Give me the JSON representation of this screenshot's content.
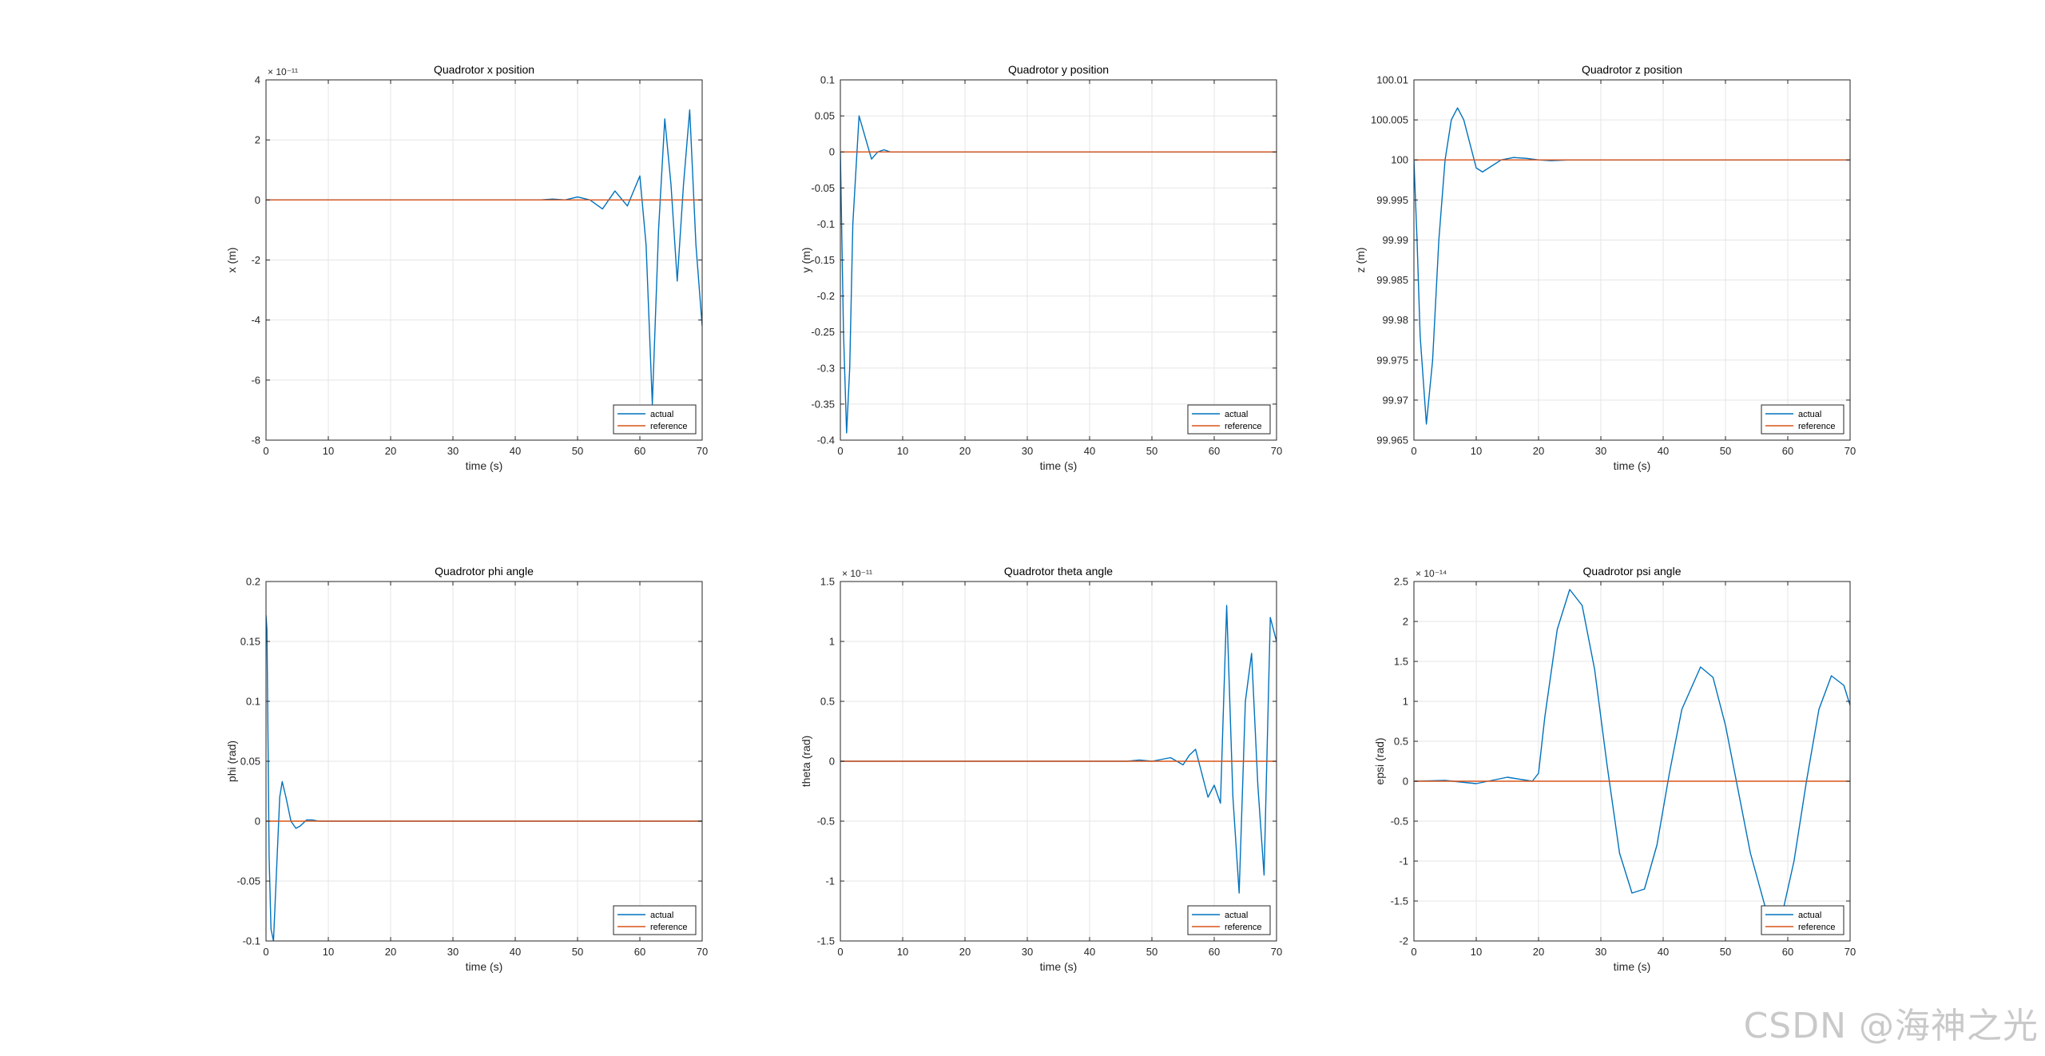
{
  "watermark": "CSDN @海神之光",
  "colors": {
    "actual": "#0072BD",
    "reference": "#D95319",
    "grid": "#e5e5e5",
    "axis": "#262626"
  },
  "chart_data": [
    {
      "type": "line",
      "title": "Quadrotor x position",
      "xlabel": "time (s)",
      "ylabel": "x (m)",
      "xlim": [
        0,
        70
      ],
      "ylim": [
        -8,
        4
      ],
      "xticks": [
        0,
        10,
        20,
        30,
        40,
        50,
        60,
        70
      ],
      "yticks": [
        -8,
        -6,
        -4,
        -2,
        0,
        2,
        4
      ],
      "ytick_labels": [
        "-8",
        "-6",
        "-4",
        "-2",
        "0",
        "2",
        "4"
      ],
      "exponent": "× 10⁻¹¹",
      "grid": true,
      "legend": "bottom-right",
      "series": [
        {
          "name": "actual",
          "x": [
            0,
            44,
            46,
            48,
            50,
            52,
            54,
            56,
            58,
            60,
            61,
            62,
            63,
            64,
            65,
            66,
            67,
            68,
            69,
            70
          ],
          "y": [
            0,
            0,
            0.03,
            0,
            0.1,
            0,
            -0.3,
            0.3,
            -0.2,
            0.8,
            -1.5,
            -6.8,
            -1,
            2.7,
            0.5,
            -2.7,
            0.5,
            3.0,
            -1.5,
            -4.2
          ]
        },
        {
          "name": "reference",
          "x": [
            0,
            70
          ],
          "y": [
            0,
            0
          ]
        }
      ]
    },
    {
      "type": "line",
      "title": "Quadrotor y position",
      "xlabel": "time (s)",
      "ylabel": "y (m)",
      "xlim": [
        0,
        70
      ],
      "ylim": [
        -0.4,
        0.1
      ],
      "xticks": [
        0,
        10,
        20,
        30,
        40,
        50,
        60,
        70
      ],
      "yticks": [
        -0.4,
        -0.35,
        -0.3,
        -0.25,
        -0.2,
        -0.15,
        -0.1,
        -0.05,
        0,
        0.05,
        0.1
      ],
      "ytick_labels": [
        "-0.4",
        "-0.35",
        "-0.3",
        "-0.25",
        "-0.2",
        "-0.15",
        "-0.1",
        "-0.05",
        "0",
        "0.05",
        "0.1"
      ],
      "exponent": "",
      "grid": true,
      "legend": "bottom-right",
      "series": [
        {
          "name": "actual",
          "x": [
            0,
            0.5,
            1,
            1.5,
            2,
            3,
            4,
            5,
            6,
            7,
            8,
            10,
            70
          ],
          "y": [
            0,
            -0.25,
            -0.39,
            -0.3,
            -0.1,
            0.05,
            0.02,
            -0.01,
            0,
            0.003,
            0,
            0,
            0
          ]
        },
        {
          "name": "reference",
          "x": [
            0,
            70
          ],
          "y": [
            0,
            0
          ]
        }
      ]
    },
    {
      "type": "line",
      "title": "Quadrotor z position",
      "xlabel": "time (s)",
      "ylabel": "z (m)",
      "xlim": [
        0,
        70
      ],
      "ylim": [
        99.965,
        100.01
      ],
      "xticks": [
        0,
        10,
        20,
        30,
        40,
        50,
        60,
        70
      ],
      "yticks": [
        99.965,
        99.97,
        99.975,
        99.98,
        99.985,
        99.99,
        99.995,
        100,
        100.005,
        100.01
      ],
      "ytick_labels": [
        "99.965",
        "99.97",
        "99.975",
        "99.98",
        "99.985",
        "99.99",
        "99.995",
        "100",
        "100.005",
        "100.01"
      ],
      "exponent": "",
      "grid": true,
      "legend": "bottom-right",
      "series": [
        {
          "name": "actual",
          "x": [
            0,
            0.5,
            1,
            2,
            3,
            4,
            5,
            6,
            7,
            8,
            9,
            10,
            11,
            12,
            14,
            16,
            18,
            20,
            22,
            25,
            30,
            70
          ],
          "y": [
            100,
            99.99,
            99.978,
            99.967,
            99.975,
            99.99,
            100.0,
            100.005,
            100.0065,
            100.005,
            100.002,
            99.999,
            99.9985,
            99.999,
            100.0,
            100.0003,
            100.0002,
            100.0,
            99.9999,
            100.0,
            100.0,
            100.0
          ]
        },
        {
          "name": "reference",
          "x": [
            0,
            70
          ],
          "y": [
            100,
            100
          ]
        }
      ]
    },
    {
      "type": "line",
      "title": "Quadrotor phi angle",
      "xlabel": "time (s)",
      "ylabel": "phi (rad)",
      "xlim": [
        0,
        70
      ],
      "ylim": [
        -0.1,
        0.2
      ],
      "xticks": [
        0,
        10,
        20,
        30,
        40,
        50,
        60,
        70
      ],
      "yticks": [
        -0.1,
        -0.05,
        0,
        0.05,
        0.1,
        0.15,
        0.2
      ],
      "ytick_labels": [
        "-0.1",
        "-0.05",
        "0",
        "0.05",
        "0.1",
        "0.15",
        "0.2"
      ],
      "exponent": "",
      "grid": true,
      "legend": "bottom-right",
      "series": [
        {
          "name": "actual",
          "x": [
            0,
            0.15,
            0.3,
            0.5,
            0.8,
            1.2,
            1.7,
            2.2,
            2.6,
            3.2,
            4,
            4.8,
            5.5,
            6.5,
            7.5,
            8.5,
            10,
            70
          ],
          "y": [
            0.172,
            0.16,
            0.08,
            -0.03,
            -0.09,
            -0.1,
            -0.04,
            0.02,
            0.033,
            0.02,
            0.0,
            -0.006,
            -0.004,
            0.001,
            0.001,
            0,
            0,
            0
          ]
        },
        {
          "name": "reference",
          "x": [
            0,
            70
          ],
          "y": [
            0,
            0
          ]
        }
      ]
    },
    {
      "type": "line",
      "title": "Quadrotor theta angle",
      "xlabel": "time (s)",
      "ylabel": "theta (rad)",
      "xlim": [
        0,
        70
      ],
      "ylim": [
        -1.5,
        1.5
      ],
      "xticks": [
        0,
        10,
        20,
        30,
        40,
        50,
        60,
        70
      ],
      "yticks": [
        -1.5,
        -1,
        -0.5,
        0,
        0.5,
        1,
        1.5
      ],
      "ytick_labels": [
        "-1.5",
        "-1",
        "-0.5",
        "0",
        "0.5",
        "1",
        "1.5"
      ],
      "exponent": "× 10⁻¹¹",
      "grid": true,
      "legend": "bottom-right",
      "series": [
        {
          "name": "actual",
          "x": [
            0,
            46,
            48,
            50,
            52,
            53,
            54,
            55,
            56,
            57,
            58,
            59,
            60,
            61,
            62,
            63,
            64,
            65,
            66,
            67,
            68,
            69,
            70
          ],
          "y": [
            0,
            0,
            0.01,
            0,
            0.02,
            0.03,
            0,
            -0.03,
            0.05,
            0.1,
            -0.1,
            -0.3,
            -0.2,
            -0.35,
            1.3,
            -0.3,
            -1.1,
            0.5,
            0.9,
            -0.2,
            -0.95,
            1.2,
            1.0
          ]
        },
        {
          "name": "reference",
          "x": [
            0,
            70
          ],
          "y": [
            0,
            0
          ]
        }
      ]
    },
    {
      "type": "line",
      "title": "Quadrotor psi angle",
      "xlabel": "time (s)",
      "ylabel": "epsi (rad)",
      "xlim": [
        0,
        70
      ],
      "ylim": [
        -2,
        2.5
      ],
      "xticks": [
        0,
        10,
        20,
        30,
        40,
        50,
        60,
        70
      ],
      "yticks": [
        -2,
        -1.5,
        -1,
        -0.5,
        0,
        0.5,
        1,
        1.5,
        2,
        2.5
      ],
      "ytick_labels": [
        "-2",
        "-1.5",
        "-1",
        "-0.5",
        "0",
        "0.5",
        "1",
        "1.5",
        "2",
        "2.5"
      ],
      "exponent": "× 10⁻¹⁴",
      "grid": true,
      "legend": "bottom-right",
      "series": [
        {
          "name": "actual",
          "x": [
            0,
            5,
            10,
            15,
            19,
            20,
            21,
            23,
            25,
            27,
            29,
            31,
            33,
            35,
            37,
            39,
            41,
            43,
            46,
            48,
            50,
            52,
            54,
            57,
            59,
            61,
            63,
            65,
            67,
            69,
            70
          ],
          "y": [
            0,
            0.01,
            -0.03,
            0.05,
            0.0,
            0.1,
            0.8,
            1.9,
            2.4,
            2.2,
            1.4,
            0.2,
            -0.9,
            -1.4,
            -1.35,
            -0.8,
            0.1,
            0.9,
            1.43,
            1.3,
            0.7,
            -0.1,
            -0.9,
            -1.75,
            -1.7,
            -1.0,
            0.0,
            0.9,
            1.32,
            1.2,
            0.95
          ]
        },
        {
          "name": "reference",
          "x": [
            0,
            70
          ],
          "y": [
            0,
            0
          ]
        }
      ]
    }
  ]
}
